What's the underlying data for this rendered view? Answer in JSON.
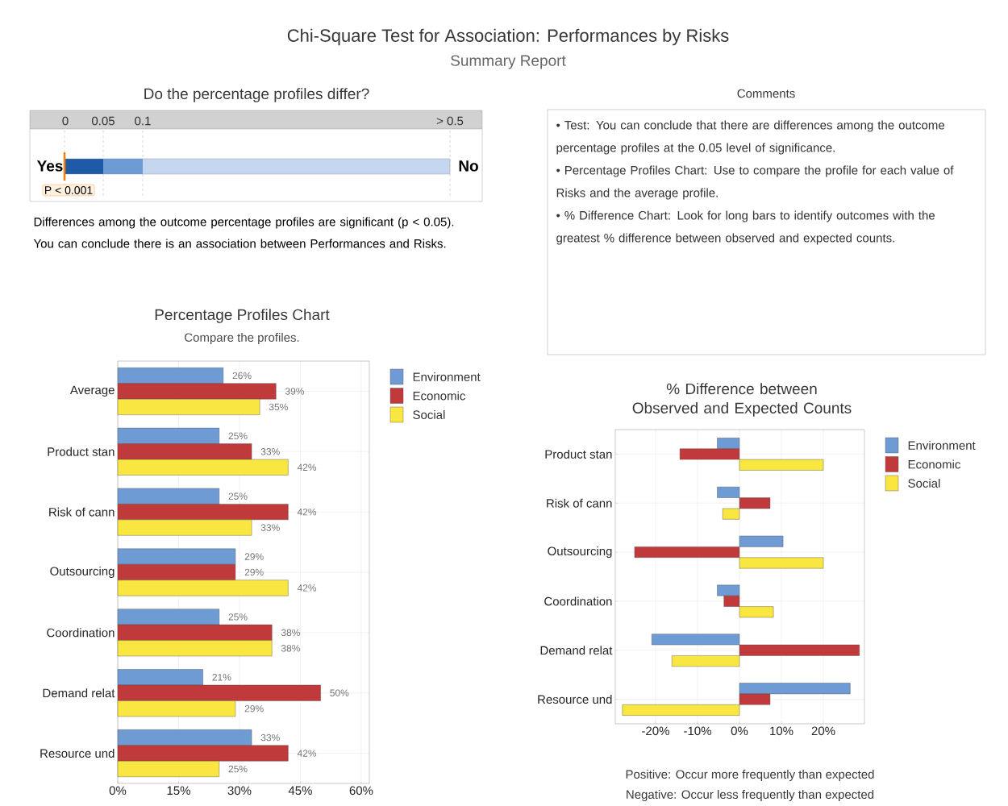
{
  "chart_data": [
    {
      "type": "other",
      "title": "Chi-Square Test for Association: Performances by Risks",
      "subtitle": "Summary Report"
    },
    {
      "type": "other",
      "title": "Do the percentage profiles differ?",
      "annotations": [
        "0",
        "0.05",
        "0.1",
        "> 0.5",
        "Yes",
        "No",
        "P < 0.001",
        "Differences among the outcome percentage profiles are significant (p < 0.05). You can conclude there is an association between Performances and Risks."
      ]
    },
    {
      "type": "other",
      "title": "Comments",
      "annotations": [
        "• Test: You can conclude that there are differences among the outcome percentage profiles at the 0.05 level of significance.",
        "• Percentage Profiles Chart: Use to compare the profile for each value of Risks and the average profile.",
        "• % Difference Chart: Look for long bars to identify outcomes with the greatest % difference between observed and expected counts."
      ]
    },
    {
      "type": "bar",
      "orientation": "horizontal",
      "title": "Percentage Profiles Chart",
      "subtitle": "Compare the profiles.",
      "categories": [
        "Average",
        "Product stan",
        "Risk of cann",
        "Outsourcing",
        "Coordination",
        "Demand relat",
        "Resource und"
      ],
      "series": [
        {
          "name": "Environment",
          "color": "#6f9bd5",
          "values": [
            26,
            25,
            25,
            29,
            25,
            21,
            33
          ],
          "value_labels": [
            "26%",
            "25%",
            "25%",
            "29%",
            "25%",
            "21%",
            "33%"
          ]
        },
        {
          "name": "Economic",
          "color": "#c0393b",
          "values": [
            39,
            33,
            42,
            29,
            38,
            50,
            42
          ],
          "value_labels": [
            "39%",
            "33%",
            "42%",
            "29%",
            "38%",
            "50%",
            "42%"
          ]
        },
        {
          "name": "Social",
          "color": "#f9e640",
          "values": [
            35,
            42,
            33,
            42,
            38,
            29,
            25
          ],
          "value_labels": [
            "35%",
            "42%",
            "33%",
            "42%",
            "38%",
            "29%",
            "25%"
          ]
        }
      ],
      "xlim": [
        0,
        62
      ],
      "xticks": [
        {
          "value": 0,
          "label": "0%"
        },
        {
          "value": 15,
          "label": "15%"
        },
        {
          "value": 30,
          "label": "30%"
        },
        {
          "value": 45,
          "label": "45%"
        },
        {
          "value": 60,
          "label": "60%"
        }
      ],
      "grid": true,
      "legend": "top right"
    },
    {
      "type": "bar",
      "orientation": "horizontal",
      "title": "% Difference between Observed and Expected Counts",
      "categories": [
        "Product stan",
        "Risk of cann",
        "Outsourcing",
        "Coordination",
        "Demand relat",
        "Resource und"
      ],
      "series": [
        {
          "name": "Environment",
          "color": "#6f9bd5",
          "values": [
            -5.3,
            -5.3,
            10.4,
            -5.3,
            -20.9,
            26.4
          ]
        },
        {
          "name": "Economic",
          "color": "#c0393b",
          "values": [
            -14.2,
            7.3,
            -25.0,
            -3.7,
            28.6,
            7.3
          ]
        },
        {
          "name": "Social",
          "color": "#f9e640",
          "values": [
            20.0,
            -4.0,
            20.0,
            8.1,
            -16.1,
            -27.9
          ]
        }
      ],
      "xlim": [
        -29.6,
        29.8
      ],
      "xticks": [
        {
          "value": -20,
          "label": "-20%"
        },
        {
          "value": -10,
          "label": "-10%"
        },
        {
          "value": 0,
          "label": "0%"
        },
        {
          "value": 10,
          "label": "10%"
        },
        {
          "value": 20,
          "label": "20%"
        }
      ],
      "grid": true,
      "legend": "top right",
      "annotations": [
        "Positive: Occur more frequently than expected",
        "Negative: Occur less frequently than expected"
      ]
    }
  ]
}
